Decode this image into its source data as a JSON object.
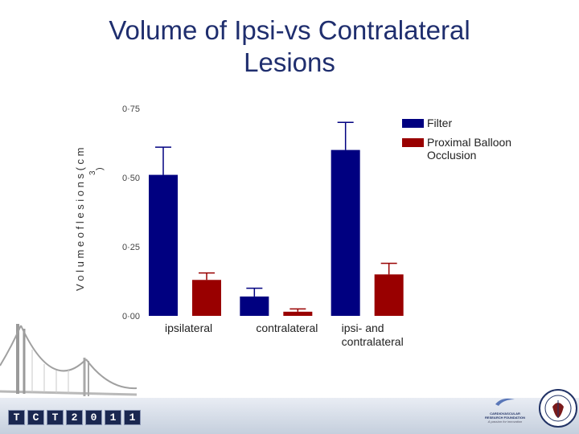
{
  "title_lines": [
    "Volume of Ipsi-vs Contralateral",
    "Lesions"
  ],
  "chart_data": {
    "type": "bar",
    "categories": [
      "ipsilateral",
      "contralateral",
      "ipsi- and\ncontralateral"
    ],
    "series": [
      {
        "name": "Filter",
        "color": "#000080",
        "values": [
          0.51,
          0.07,
          0.6
        ],
        "errors": [
          0.1,
          0.03,
          0.1
        ]
      },
      {
        "name": "Proximal Balloon Occlusion",
        "color": "#990000",
        "values": [
          0.13,
          0.015,
          0.15
        ],
        "errors": [
          0.025,
          0.01,
          0.04
        ]
      }
    ],
    "yticks": [
      "0·00",
      "0·25",
      "0·50",
      "0·75"
    ],
    "ylim": [
      0,
      0.75
    ],
    "ylabel_fragments": [
      "V o l u m e  o f  l e s i o n s  ( c m",
      "3",
      ")"
    ],
    "legend_position": "top-right"
  },
  "footer": {
    "tct_chars": [
      "T",
      "C",
      "T",
      "2",
      "0",
      "1",
      "1"
    ],
    "crf_line1": "CARDIOVASCULAR",
    "crf_line2": "RESEARCH FOUNDATION",
    "crf_tagline": "A passion for innovation"
  }
}
